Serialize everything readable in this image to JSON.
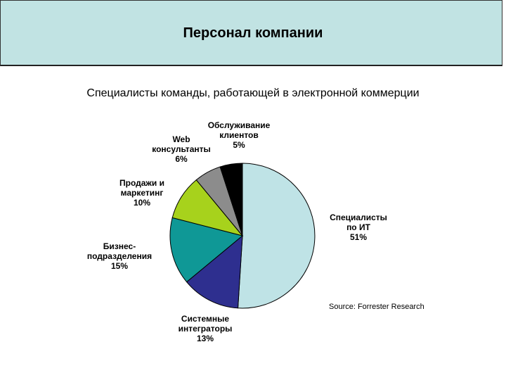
{
  "header": {
    "title": "Персонал компании"
  },
  "source": "Source: Forrester Research",
  "chart_data": {
    "type": "pie",
    "title": "Специалисты команды, работающей  в электронной коммерции",
    "slices": [
      {
        "label_lines": [
          "Специалисты",
          "по ИТ"
        ],
        "value_label": "51%",
        "value": 51,
        "color": "#bfe3e6"
      },
      {
        "label_lines": [
          "Системные",
          "интеграторы"
        ],
        "value_label": "13%",
        "value": 13,
        "color": "#2e2f8f"
      },
      {
        "label_lines": [
          "Бизнес-",
          "подразделения"
        ],
        "value_label": "15%",
        "value": 15,
        "color": "#0f9896"
      },
      {
        "label_lines": [
          "Продажи и",
          "маркетинг"
        ],
        "value_label": "10%",
        "value": 10,
        "color": "#a7d21c"
      },
      {
        "label_lines": [
          "Web",
          "консультанты"
        ],
        "value_label": "6%",
        "value": 6,
        "color": "#8c8c8c"
      },
      {
        "label_lines": [
          "Обслуживание",
          "клиентов"
        ],
        "value_label": "5%",
        "value": 5,
        "color": "#000000"
      }
    ]
  }
}
